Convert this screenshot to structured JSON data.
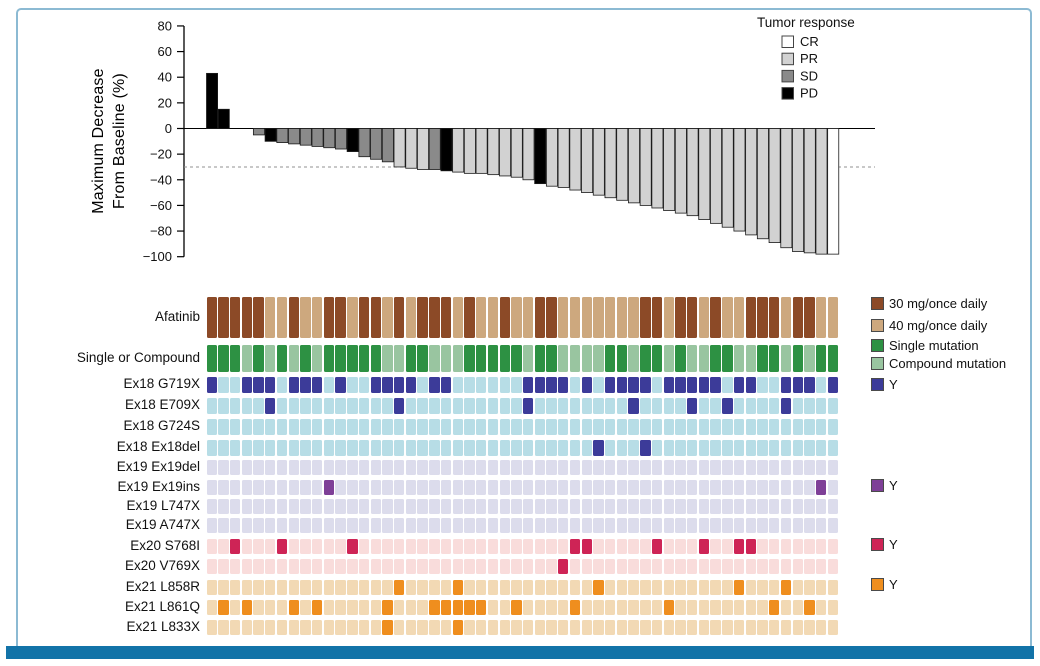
{
  "figure": {
    "frame_border_color": "#8cbad3",
    "bottom_bar_color": "#1273a8"
  },
  "chart_data": {
    "type": "bar",
    "title": "",
    "ylabel_lines": [
      "Maximum Decrease",
      "From Baseline (%)"
    ],
    "xlabel": "",
    "yticks": [
      80,
      60,
      40,
      20,
      0,
      -20,
      -40,
      -60,
      -80,
      -100
    ],
    "ylim": [
      -100,
      80
    ],
    "reference_line_y": -30,
    "grid": false,
    "legend_position": "top-right",
    "legend": {
      "title": "Tumor response",
      "items": [
        {
          "label": "CR",
          "color": "#ffffff"
        },
        {
          "label": "PR",
          "color": "#d2d2d2"
        },
        {
          "label": "SD",
          "color": "#8a8a8a"
        },
        {
          "label": "PD",
          "color": "#000000"
        }
      ]
    },
    "response_colors": {
      "CR": "#ffffff",
      "PR": "#d2d2d2",
      "SD": "#8a8a8a",
      "PD": "#000000"
    },
    "patients": [
      {
        "value": 43,
        "response": "PD"
      },
      {
        "value": 15,
        "response": "PD"
      },
      {
        "value": 0,
        "response": "SD"
      },
      {
        "value": 0,
        "response": "SD"
      },
      {
        "value": -5,
        "response": "SD"
      },
      {
        "value": -10,
        "response": "PD"
      },
      {
        "value": -11,
        "response": "SD"
      },
      {
        "value": -12,
        "response": "SD"
      },
      {
        "value": -13,
        "response": "SD"
      },
      {
        "value": -14,
        "response": "SD"
      },
      {
        "value": -15,
        "response": "SD"
      },
      {
        "value": -16,
        "response": "SD"
      },
      {
        "value": -18,
        "response": "PD"
      },
      {
        "value": -22,
        "response": "SD"
      },
      {
        "value": -24,
        "response": "SD"
      },
      {
        "value": -26,
        "response": "SD"
      },
      {
        "value": -30,
        "response": "PR"
      },
      {
        "value": -31,
        "response": "PR"
      },
      {
        "value": -32,
        "response": "PR"
      },
      {
        "value": -32,
        "response": "SD"
      },
      {
        "value": -33,
        "response": "PD"
      },
      {
        "value": -34,
        "response": "PR"
      },
      {
        "value": -35,
        "response": "PR"
      },
      {
        "value": -35,
        "response": "PR"
      },
      {
        "value": -36,
        "response": "PR"
      },
      {
        "value": -37,
        "response": "PR"
      },
      {
        "value": -38,
        "response": "PR"
      },
      {
        "value": -40,
        "response": "PR"
      },
      {
        "value": -43,
        "response": "PD"
      },
      {
        "value": -45,
        "response": "PR"
      },
      {
        "value": -46,
        "response": "PR"
      },
      {
        "value": -48,
        "response": "PR"
      },
      {
        "value": -50,
        "response": "PR"
      },
      {
        "value": -52,
        "response": "PR"
      },
      {
        "value": -54,
        "response": "PR"
      },
      {
        "value": -56,
        "response": "PR"
      },
      {
        "value": -58,
        "response": "PR"
      },
      {
        "value": -60,
        "response": "PR"
      },
      {
        "value": -62,
        "response": "PR"
      },
      {
        "value": -64,
        "response": "PR"
      },
      {
        "value": -66,
        "response": "PR"
      },
      {
        "value": -68,
        "response": "PR"
      },
      {
        "value": -71,
        "response": "PR"
      },
      {
        "value": -74,
        "response": "PR"
      },
      {
        "value": -77,
        "response": "PR"
      },
      {
        "value": -80,
        "response": "PR"
      },
      {
        "value": -83,
        "response": "PR"
      },
      {
        "value": -86,
        "response": "PR"
      },
      {
        "value": -89,
        "response": "PR"
      },
      {
        "value": -93,
        "response": "PR"
      },
      {
        "value": -96,
        "response": "PR"
      },
      {
        "value": -97,
        "response": "PR"
      },
      {
        "value": -98,
        "response": "PR"
      },
      {
        "value": -98,
        "response": "CR"
      }
    ]
  },
  "matrix": {
    "n_columns": 54,
    "dose_row": {
      "label": "Afatinib",
      "on_label": "30 mg/once daily",
      "off_label": "40 mg/once daily",
      "on_color": "#8c4a27",
      "off_color": "#cda87e",
      "cols_30mg": [
        1,
        2,
        3,
        4,
        5,
        8,
        11,
        12,
        14,
        15,
        17,
        19,
        20,
        21,
        23,
        26,
        29,
        30,
        38,
        39,
        41,
        42,
        44,
        47,
        48,
        49,
        51,
        52
      ]
    },
    "category_row": {
      "label": "Single or Compound",
      "single_label": "Single mutation",
      "compound_label": "Compound mutation",
      "single_color": "#2d9143",
      "compound_color": "#99c5a0",
      "compound_cols": [
        4,
        6,
        8,
        10,
        16,
        17,
        20,
        21,
        22,
        28,
        31,
        32,
        33,
        34,
        37,
        40,
        42,
        43,
        46,
        47,
        50,
        52
      ]
    },
    "groups": {
      "ex18": {
        "bg": "#b7dde6",
        "mark": "#3c3b99"
      },
      "ex19": {
        "bg": "#dcdcec",
        "mark": "#7e3f97"
      },
      "ex20": {
        "bg": "#f9dcdb",
        "mark": "#ce2456"
      },
      "ex21": {
        "bg": "#f2d9b4",
        "mark": "#ef8e1e"
      }
    },
    "mark_label": "Y",
    "mutation_rows": [
      {
        "label": "Ex18 G719X",
        "group": "ex18",
        "y_cols": [
          1,
          4,
          5,
          6,
          8,
          9,
          10,
          12,
          15,
          16,
          17,
          18,
          20,
          21,
          28,
          29,
          30,
          31,
          33,
          35,
          36,
          37,
          38,
          40,
          41,
          42,
          43,
          44,
          46,
          47,
          50,
          51,
          52,
          54
        ]
      },
      {
        "label": "Ex18 E709X",
        "group": "ex18",
        "y_cols": [
          6,
          17,
          28,
          37,
          42,
          45,
          50
        ]
      },
      {
        "label": "Ex18 G724S",
        "group": "ex18",
        "y_cols": []
      },
      {
        "label": "Ex18 Ex18del",
        "group": "ex18",
        "y_cols": [
          34,
          38
        ]
      },
      {
        "label": "Ex19 Ex19del",
        "group": "ex19",
        "y_cols": []
      },
      {
        "label": "Ex19 Ex19ins",
        "group": "ex19",
        "y_cols": [
          11,
          53
        ]
      },
      {
        "label": "Ex19 L747X",
        "group": "ex19",
        "y_cols": []
      },
      {
        "label": "Ex19 A747X",
        "group": "ex19",
        "y_cols": []
      },
      {
        "label": "Ex20 S768I",
        "group": "ex20",
        "y_cols": [
          3,
          7,
          13,
          32,
          33,
          39,
          43,
          46,
          47
        ]
      },
      {
        "label": "Ex20 V769X",
        "group": "ex20",
        "y_cols": [
          31
        ]
      },
      {
        "label": "Ex21 L858R",
        "group": "ex21",
        "y_cols": [
          17,
          22,
          34,
          46,
          50
        ]
      },
      {
        "label": "Ex21 L861Q",
        "group": "ex21",
        "y_cols": [
          2,
          4,
          8,
          10,
          16,
          20,
          21,
          22,
          23,
          24,
          27,
          32,
          40,
          49,
          52
        ]
      },
      {
        "label": "Ex21 L833X",
        "group": "ex21",
        "y_cols": [
          16,
          22
        ]
      }
    ],
    "right_legend": [
      {
        "swatch": "#8c4a27",
        "label": "30 mg/once daily",
        "y": 297
      },
      {
        "swatch": "#cda87e",
        "label": "40 mg/once daily",
        "y": 319
      },
      {
        "swatch": "#2d9143",
        "label": "Single mutation",
        "y": 339
      },
      {
        "swatch": "#99c5a0",
        "label": "Compound mutation",
        "y": 357
      },
      {
        "swatch": "#3c3b99",
        "label": "Y",
        "y": 378
      },
      {
        "swatch": "#7e3f97",
        "label": "Y",
        "y": 479
      },
      {
        "swatch": "#ce2456",
        "label": "Y",
        "y": 538
      },
      {
        "swatch": "#ef8e1e",
        "label": "Y",
        "y": 578
      }
    ]
  }
}
